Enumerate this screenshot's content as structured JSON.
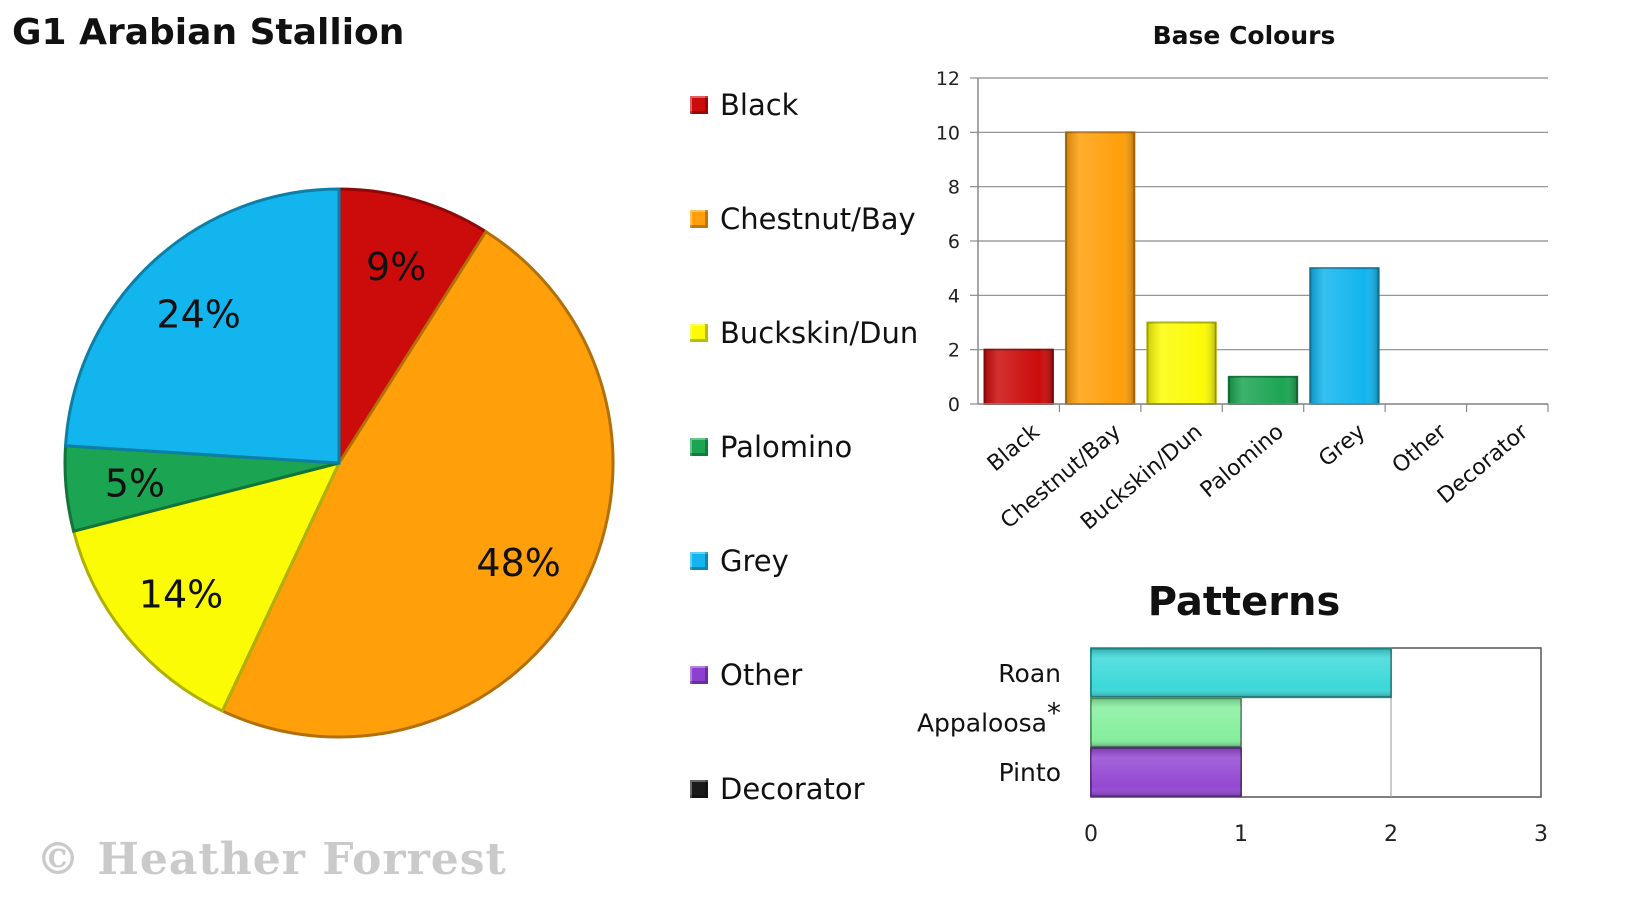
{
  "title": "G1 Arabian Stallion",
  "watermark": "© Heather Forrest",
  "chart_data": [
    {
      "type": "pie",
      "categories": [
        "Black",
        "Chestnut/Bay",
        "Buckskin/Dun",
        "Palomino",
        "Grey",
        "Other",
        "Decorator"
      ],
      "values": [
        9,
        48,
        14,
        5,
        24,
        0,
        0
      ],
      "labels": [
        "9%",
        "48%",
        "14%",
        "5%",
        "24%",
        "",
        ""
      ],
      "colors": [
        "#cc0b0b",
        "#ff9f0a",
        "#fbfb06",
        "#1ba552",
        "#12b5ee",
        "#8d3fd0",
        "#1a1a1a"
      ],
      "legend": "right"
    },
    {
      "type": "bar",
      "title": "Base Colours",
      "categories": [
        "Black",
        "Chestnut/Bay",
        "Buckskin/Dun",
        "Palomino",
        "Grey",
        "Other",
        "Decorator"
      ],
      "values": [
        2,
        10,
        3,
        1,
        5,
        0,
        0
      ],
      "colors": [
        "#cc0b0b",
        "#ff9f0a",
        "#fbfb06",
        "#1ba552",
        "#12b5ee",
        "#8d3fd0",
        "#1a1a1a"
      ],
      "ylim": [
        0,
        12
      ],
      "yticks": [
        0,
        2,
        4,
        6,
        8,
        10,
        12
      ],
      "grid": true
    },
    {
      "type": "bar",
      "orientation": "horizontal",
      "title": "Patterns",
      "categories": [
        "Roan",
        "Appaloosa*",
        "Pinto"
      ],
      "values": [
        2,
        1,
        1
      ],
      "colors": [
        "#3cd8d8",
        "#86ef9e",
        "#9448d2"
      ],
      "xlim": [
        0,
        3
      ],
      "xticks": [
        0,
        1,
        2,
        3
      ],
      "grid": true
    }
  ]
}
